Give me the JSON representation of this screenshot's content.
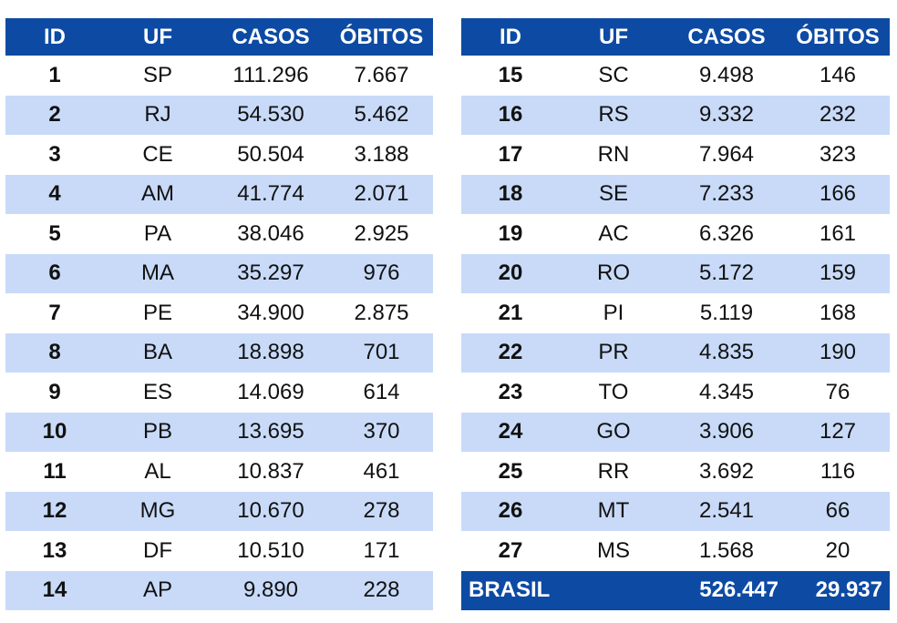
{
  "headers": {
    "id": "ID",
    "uf": "UF",
    "casos": "CASOS",
    "obitos": "ÓBITOS"
  },
  "left_rows": [
    {
      "id": "1",
      "uf": "SP",
      "casos": "111.296",
      "obitos": "7.667"
    },
    {
      "id": "2",
      "uf": "RJ",
      "casos": "54.530",
      "obitos": "5.462"
    },
    {
      "id": "3",
      "uf": "CE",
      "casos": "50.504",
      "obitos": "3.188"
    },
    {
      "id": "4",
      "uf": "AM",
      "casos": "41.774",
      "obitos": "2.071"
    },
    {
      "id": "5",
      "uf": "PA",
      "casos": "38.046",
      "obitos": "2.925"
    },
    {
      "id": "6",
      "uf": "MA",
      "casos": "35.297",
      "obitos": "976"
    },
    {
      "id": "7",
      "uf": "PE",
      "casos": "34.900",
      "obitos": "2.875"
    },
    {
      "id": "8",
      "uf": "BA",
      "casos": "18.898",
      "obitos": "701"
    },
    {
      "id": "9",
      "uf": "ES",
      "casos": "14.069",
      "obitos": "614"
    },
    {
      "id": "10",
      "uf": "PB",
      "casos": "13.695",
      "obitos": "370"
    },
    {
      "id": "11",
      "uf": "AL",
      "casos": "10.837",
      "obitos": "461"
    },
    {
      "id": "12",
      "uf": "MG",
      "casos": "10.670",
      "obitos": "278"
    },
    {
      "id": "13",
      "uf": "DF",
      "casos": "10.510",
      "obitos": "171"
    },
    {
      "id": "14",
      "uf": "AP",
      "casos": "9.890",
      "obitos": "228"
    }
  ],
  "right_rows": [
    {
      "id": "15",
      "uf": "SC",
      "casos": "9.498",
      "obitos": "146"
    },
    {
      "id": "16",
      "uf": "RS",
      "casos": "9.332",
      "obitos": "232"
    },
    {
      "id": "17",
      "uf": "RN",
      "casos": "7.964",
      "obitos": "323"
    },
    {
      "id": "18",
      "uf": "SE",
      "casos": "7.233",
      "obitos": "166"
    },
    {
      "id": "19",
      "uf": "AC",
      "casos": "6.326",
      "obitos": "161"
    },
    {
      "id": "20",
      "uf": "RO",
      "casos": "5.172",
      "obitos": "159"
    },
    {
      "id": "21",
      "uf": "PI",
      "casos": "5.119",
      "obitos": "168"
    },
    {
      "id": "22",
      "uf": "PR",
      "casos": "4.835",
      "obitos": "190"
    },
    {
      "id": "23",
      "uf": "TO",
      "casos": "4.345",
      "obitos": "76"
    },
    {
      "id": "24",
      "uf": "GO",
      "casos": "3.906",
      "obitos": "127"
    },
    {
      "id": "25",
      "uf": "RR",
      "casos": "3.692",
      "obitos": "116"
    },
    {
      "id": "26",
      "uf": "MT",
      "casos": "2.541",
      "obitos": "66"
    },
    {
      "id": "27",
      "uf": "MS",
      "casos": "1.568",
      "obitos": "20"
    }
  ],
  "total": {
    "label": "BRASIL",
    "casos": "526.447",
    "obitos": "29.937"
  },
  "colors": {
    "header_bg": "#0d4aa3",
    "alt_row_bg": "#c8daf8",
    "row_bg": "#ffffff"
  }
}
